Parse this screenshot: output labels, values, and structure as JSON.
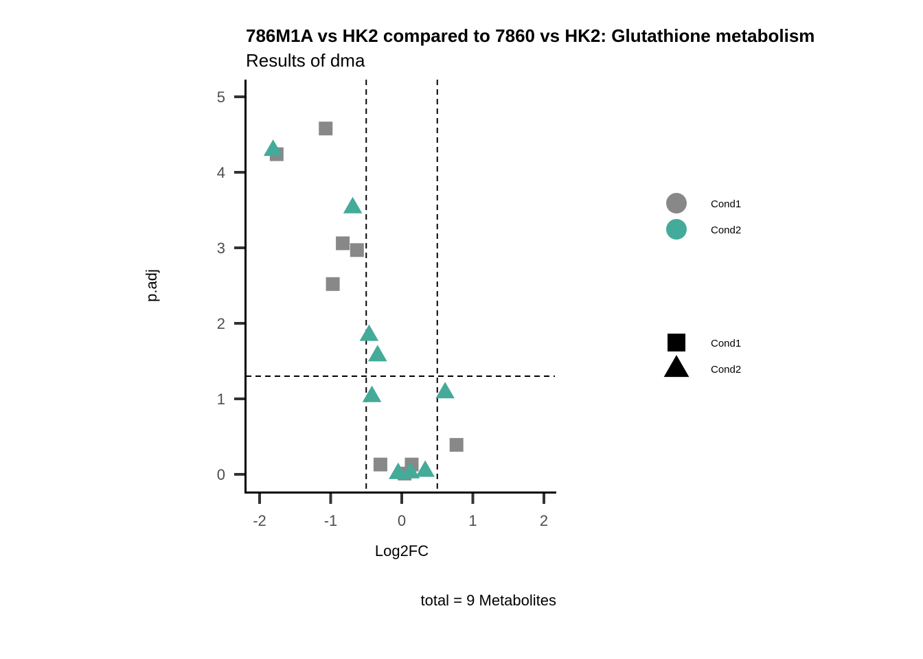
{
  "chart_data": {
    "type": "scatter",
    "title": "786M1A vs HK2 compared to 7860 vs HK2: Glutathione metabolism",
    "subtitle": "Results of dma",
    "xlabel": "Log2FC",
    "ylabel": "p.adj",
    "caption": "total = 9 Metabolites",
    "xlim": [
      -2.2,
      2.2
    ],
    "ylim": [
      -0.24,
      5.23
    ],
    "x_ticks": [
      -2,
      -1,
      0,
      1,
      2
    ],
    "x_tick_labels": [
      "-2",
      "-1",
      "0",
      "1",
      "2"
    ],
    "y_ticks": [
      0,
      1,
      2,
      3,
      4,
      5
    ],
    "y_tick_labels": [
      "0",
      "1",
      "2",
      "3",
      "4",
      "5"
    ],
    "grid": false,
    "thresholds": {
      "x": [
        -0.5,
        0.5
      ],
      "y": 1.3
    },
    "series": [
      {
        "name": "Cond1",
        "shape": "square",
        "color": "#888888",
        "points": [
          {
            "x": -1.07,
            "y": 4.58
          },
          {
            "x": -1.76,
            "y": 4.24
          },
          {
            "x": -0.83,
            "y": 3.06
          },
          {
            "x": -0.63,
            "y": 2.97
          },
          {
            "x": -0.97,
            "y": 2.52
          },
          {
            "x": 0.77,
            "y": 0.39
          },
          {
            "x": -0.3,
            "y": 0.13
          },
          {
            "x": 0.14,
            "y": 0.13
          },
          {
            "x": 0.04,
            "y": 0.01
          }
        ]
      },
      {
        "name": "Cond2",
        "shape": "triangle",
        "color": "#44AA99",
        "points": [
          {
            "x": -1.81,
            "y": 4.3
          },
          {
            "x": -0.69,
            "y": 3.54
          },
          {
            "x": -0.46,
            "y": 1.85
          },
          {
            "x": -0.34,
            "y": 1.58
          },
          {
            "x": -0.42,
            "y": 1.04
          },
          {
            "x": 0.61,
            "y": 1.09
          },
          {
            "x": -0.05,
            "y": 0.02
          },
          {
            "x": 0.12,
            "y": 0.03
          },
          {
            "x": 0.33,
            "y": 0.05
          }
        ]
      }
    ],
    "legend": {
      "position": "right",
      "color_legend": [
        {
          "label": "Cond1",
          "color": "#888888"
        },
        {
          "label": "Cond2",
          "color": "#44AA99"
        }
      ],
      "shape_legend": [
        {
          "label": "Cond1",
          "shape": "square"
        },
        {
          "label": "Cond2",
          "shape": "triangle"
        }
      ]
    }
  }
}
